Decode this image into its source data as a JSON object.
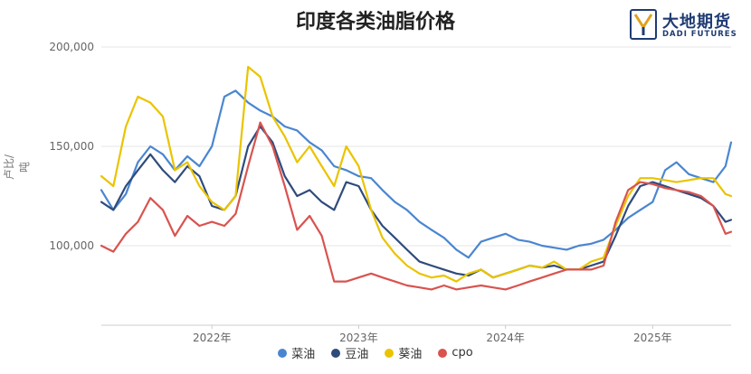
{
  "chart_data": {
    "type": "line",
    "title": "印度各类油脂价格",
    "ylabel": "卢比/吨",
    "xlabel": "",
    "ylim": [
      60000,
      200000
    ],
    "yticks": [
      100000,
      150000,
      200000
    ],
    "ytick_labels": [
      "100,000",
      "150,000",
      "200,000"
    ],
    "xticks": [
      "2022-01-01",
      "2023-01-01",
      "2024-01-01",
      "2025-01-01"
    ],
    "xtick_labels": [
      "2022年",
      "2023年",
      "2024年",
      "2025年"
    ],
    "x_range": [
      "2021-04-01",
      "2025-07-15"
    ],
    "grid": "horizontal",
    "legend_position": "bottom",
    "series": [
      {
        "name": "菜油",
        "color": "#4a86d0",
        "x": [
          "2021-04-01",
          "2021-05-01",
          "2021-06-01",
          "2021-07-01",
          "2021-08-01",
          "2021-09-01",
          "2021-10-01",
          "2021-11-01",
          "2021-12-01",
          "2022-01-01",
          "2022-02-01",
          "2022-03-01",
          "2022-04-01",
          "2022-05-01",
          "2022-06-01",
          "2022-07-01",
          "2022-08-01",
          "2022-09-01",
          "2022-10-01",
          "2022-11-01",
          "2022-12-01",
          "2023-01-01",
          "2023-02-01",
          "2023-03-01",
          "2023-04-01",
          "2023-05-01",
          "2023-06-01",
          "2023-07-01",
          "2023-08-01",
          "2023-09-01",
          "2023-10-01",
          "2023-11-01",
          "2023-12-01",
          "2024-01-01",
          "2024-02-01",
          "2024-03-01",
          "2024-04-01",
          "2024-05-01",
          "2024-06-01",
          "2024-07-01",
          "2024-08-01",
          "2024-09-01",
          "2024-10-01",
          "2024-11-01",
          "2024-12-01",
          "2025-01-01",
          "2025-02-01",
          "2025-03-01",
          "2025-04-01",
          "2025-05-01",
          "2025-06-01",
          "2025-07-01",
          "2025-07-15"
        ],
        "values": [
          128000,
          118000,
          126000,
          142000,
          150000,
          146000,
          138000,
          145000,
          140000,
          150000,
          175000,
          178000,
          172000,
          168000,
          165000,
          160000,
          158000,
          152000,
          148000,
          140000,
          138000,
          135000,
          134000,
          128000,
          122000,
          118000,
          112000,
          108000,
          104000,
          98000,
          94000,
          102000,
          104000,
          106000,
          103000,
          102000,
          100000,
          99000,
          98000,
          100000,
          101000,
          103000,
          108000,
          114000,
          118000,
          122000,
          138000,
          142000,
          136000,
          134000,
          132000,
          140000,
          152000
        ]
      },
      {
        "name": "豆油",
        "color": "#2f4b7c",
        "x": [
          "2021-04-01",
          "2021-05-01",
          "2021-06-01",
          "2021-07-01",
          "2021-08-01",
          "2021-09-01",
          "2021-10-01",
          "2021-11-01",
          "2021-12-01",
          "2022-01-01",
          "2022-02-01",
          "2022-03-01",
          "2022-04-01",
          "2022-05-01",
          "2022-06-01",
          "2022-07-01",
          "2022-08-01",
          "2022-09-01",
          "2022-10-01",
          "2022-11-01",
          "2022-12-01",
          "2023-01-01",
          "2023-02-01",
          "2023-03-01",
          "2023-04-01",
          "2023-05-01",
          "2023-06-01",
          "2023-07-01",
          "2023-08-01",
          "2023-09-01",
          "2023-10-01",
          "2023-11-01",
          "2023-12-01",
          "2024-01-01",
          "2024-02-01",
          "2024-03-01",
          "2024-04-01",
          "2024-05-01",
          "2024-06-01",
          "2024-07-01",
          "2024-08-01",
          "2024-09-01",
          "2024-10-01",
          "2024-11-01",
          "2024-12-01",
          "2025-01-01",
          "2025-02-01",
          "2025-03-01",
          "2025-04-01",
          "2025-05-01",
          "2025-06-01",
          "2025-07-01",
          "2025-07-15"
        ],
        "values": [
          122000,
          118000,
          130000,
          138000,
          146000,
          138000,
          132000,
          140000,
          135000,
          120000,
          118000,
          125000,
          150000,
          160000,
          152000,
          135000,
          125000,
          128000,
          122000,
          118000,
          132000,
          130000,
          118000,
          110000,
          104000,
          98000,
          92000,
          90000,
          88000,
          86000,
          85000,
          88000,
          84000,
          86000,
          88000,
          90000,
          89000,
          90000,
          88000,
          88000,
          90000,
          92000,
          105000,
          120000,
          130000,
          132000,
          130000,
          128000,
          126000,
          124000,
          120000,
          112000,
          113000
        ]
      },
      {
        "name": "葵油",
        "color": "#eac400",
        "x": [
          "2021-04-01",
          "2021-05-01",
          "2021-06-01",
          "2021-07-01",
          "2021-08-01",
          "2021-09-01",
          "2021-10-01",
          "2021-11-01",
          "2021-12-01",
          "2022-01-01",
          "2022-02-01",
          "2022-03-01",
          "2022-04-01",
          "2022-05-01",
          "2022-06-01",
          "2022-07-01",
          "2022-08-01",
          "2022-09-01",
          "2022-10-01",
          "2022-11-01",
          "2022-12-01",
          "2023-01-01",
          "2023-02-01",
          "2023-03-01",
          "2023-04-01",
          "2023-05-01",
          "2023-06-01",
          "2023-07-01",
          "2023-08-01",
          "2023-09-01",
          "2023-10-01",
          "2023-11-01",
          "2023-12-01",
          "2024-01-01",
          "2024-02-01",
          "2024-03-01",
          "2024-04-01",
          "2024-05-01",
          "2024-06-01",
          "2024-07-01",
          "2024-08-01",
          "2024-09-01",
          "2024-10-01",
          "2024-11-01",
          "2024-12-01",
          "2025-01-01",
          "2025-02-01",
          "2025-03-01",
          "2025-04-01",
          "2025-05-01",
          "2025-06-01",
          "2025-07-01",
          "2025-07-15"
        ],
        "values": [
          135000,
          130000,
          160000,
          175000,
          172000,
          165000,
          138000,
          142000,
          130000,
          122000,
          118000,
          125000,
          190000,
          185000,
          165000,
          155000,
          142000,
          150000,
          140000,
          130000,
          150000,
          140000,
          118000,
          104000,
          96000,
          90000,
          86000,
          84000,
          85000,
          82000,
          86000,
          88000,
          84000,
          86000,
          88000,
          90000,
          89000,
          92000,
          88000,
          88000,
          92000,
          94000,
          110000,
          125000,
          134000,
          134000,
          133000,
          132000,
          133000,
          134000,
          134000,
          126000,
          125000
        ]
      },
      {
        "name": "cpo",
        "color": "#d9534f",
        "x": [
          "2021-04-01",
          "2021-05-01",
          "2021-06-01",
          "2021-07-01",
          "2021-08-01",
          "2021-09-01",
          "2021-10-01",
          "2021-11-01",
          "2021-12-01",
          "2022-01-01",
          "2022-02-01",
          "2022-03-01",
          "2022-04-01",
          "2022-05-01",
          "2022-06-01",
          "2022-07-01",
          "2022-08-01",
          "2022-09-01",
          "2022-10-01",
          "2022-11-01",
          "2022-12-01",
          "2023-01-01",
          "2023-02-01",
          "2023-03-01",
          "2023-04-01",
          "2023-05-01",
          "2023-06-01",
          "2023-07-01",
          "2023-08-01",
          "2023-09-01",
          "2023-10-01",
          "2023-11-01",
          "2023-12-01",
          "2024-01-01",
          "2024-02-01",
          "2024-03-01",
          "2024-04-01",
          "2024-05-01",
          "2024-06-01",
          "2024-07-01",
          "2024-08-01",
          "2024-09-01",
          "2024-10-01",
          "2024-11-01",
          "2024-12-01",
          "2025-01-01",
          "2025-02-01",
          "2025-03-01",
          "2025-04-01",
          "2025-05-01",
          "2025-06-01",
          "2025-07-01",
          "2025-07-15"
        ],
        "values": [
          100000,
          97000,
          106000,
          112000,
          124000,
          118000,
          105000,
          115000,
          110000,
          112000,
          110000,
          116000,
          140000,
          162000,
          150000,
          130000,
          108000,
          115000,
          105000,
          82000,
          82000,
          84000,
          86000,
          84000,
          82000,
          80000,
          79000,
          78000,
          80000,
          78000,
          79000,
          80000,
          79000,
          78000,
          80000,
          82000,
          84000,
          86000,
          88000,
          88000,
          88000,
          90000,
          112000,
          128000,
          132000,
          131000,
          129000,
          128000,
          127000,
          125000,
          120000,
          106000,
          107000
        ]
      }
    ]
  },
  "logo": {
    "cn": "大地期货",
    "en": "DADI FUTURES"
  }
}
